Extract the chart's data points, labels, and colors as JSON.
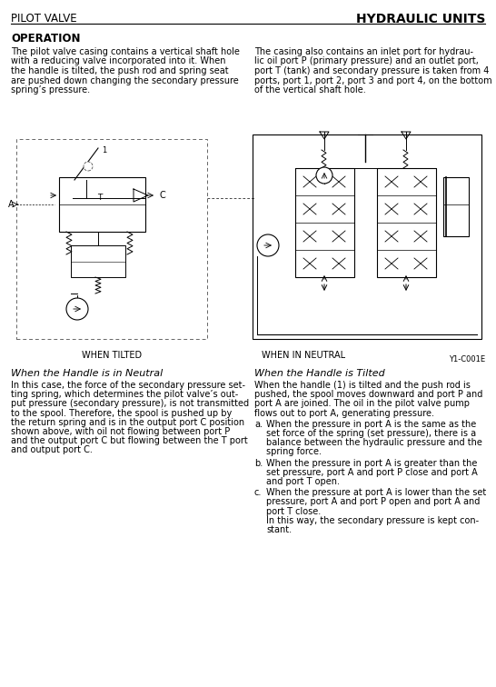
{
  "bg_color": "#ffffff",
  "header_left": "PILOT VALVE",
  "header_right": "HYDRAULIC UNITS",
  "section_title": "OPERATION",
  "col1_para1_lines": [
    "The pilot valve casing contains a vertical shaft hole",
    "with a reducing valve incorporated into it. When",
    "the handle is tilted, the push rod and spring seat",
    "are pushed down changing the secondary pressure",
    "spring’s pressure."
  ],
  "col2_para1_lines": [
    "The casing also contains an inlet port for hydrau-",
    "lic oil port P (primary pressure) and an outlet port,",
    "port T (tank) and secondary pressure is taken from 4",
    "ports, port 1, port 2, port 3 and port 4, on the bottom",
    "of the vertical shaft hole."
  ],
  "diagram_caption_left": "WHEN TILTED",
  "diagram_caption_right": "WHEN IN NEUTRAL",
  "diagram_ref": "Y1-C001E",
  "neutral_title": "When the Handle is in Neutral",
  "neutral_body_lines": [
    "In this case, the force of the secondary pressure set-",
    "ting spring, which determines the pilot valve’s out-",
    "put pressure (secondary pressure), is not transmitted",
    "to the spool. Therefore, the spool is pushed up by",
    "the return spring and is in the output port C position",
    "shown above, with oil not flowing between port P",
    "and the output port C but flowing between the T port",
    "and output port C."
  ],
  "tilted_title": "When the Handle is Tilted",
  "tilted_body_lines": [
    "When the handle (1) is tilted and the push rod is",
    "pushed, the spool moves downward and port P and",
    "port A are joined. The oil in the pilot valve pump",
    "flows out to port A, generating pressure."
  ],
  "tilted_a_lines": [
    "When the pressure in port A is the same as the",
    "set force of the spring (set pressure), there is a",
    "balance between the hydraulic pressure and the",
    "spring force."
  ],
  "tilted_b_lines": [
    "When the pressure in port A is greater than the",
    "set pressure, port A and port P close and port A",
    "and port T open."
  ],
  "tilted_c_lines": [
    "When the pressure at port A is lower than the set",
    "pressure, port A and port P open and port A and",
    "port T close.",
    "In this way, the secondary pressure is kept con-",
    "stant."
  ]
}
